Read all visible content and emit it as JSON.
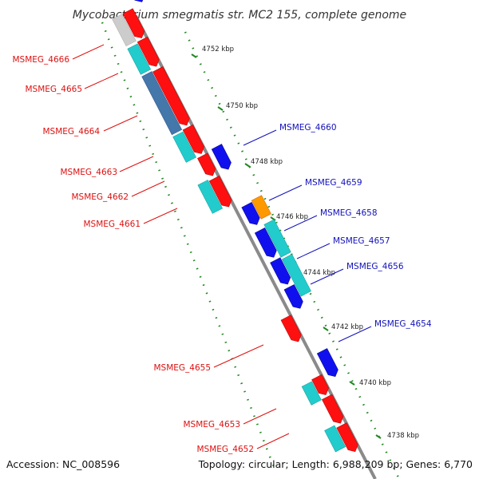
{
  "title": "Mycobacterium smegmatis str. MC2 155, complete genome",
  "accession": "Accession: NC_008596",
  "summary": "Topology: circular; Length: 6,988,209 bp; Genes: 6,770",
  "colors": {
    "cds_forward": "#ff1010",
    "cds_reverse": "#1010ee",
    "cds_other": "#22cccc",
    "orange": "#ff9900",
    "steel": "#4477aa",
    "gray": "#cccccc",
    "backbone": "#8a8a8a",
    "gc_dots": "#228822",
    "label_left": "#dd1111",
    "label_right": "#1111bb"
  },
  "ticks": [
    "4752 kbp",
    "4750 kbp",
    "4748 kbp",
    "4746 kbp",
    "4744 kbp",
    "4742 kbp",
    "4740 kbp",
    "4738 kbp"
  ],
  "left_labels": [
    "MSMEG_4666",
    "MSMEG_4665",
    "MSMEG_4664",
    "MSMEG_4663",
    "MSMEG_4662",
    "MSMEG_4661",
    "MSMEG_4655",
    "MSMEG_4653",
    "MSMEG_4652"
  ],
  "right_labels": [
    "MSMEG_4660",
    "MSMEG_4659",
    "MSMEG_4658",
    "MSMEG_4657",
    "MSMEG_4656",
    "MSMEG_4654"
  ]
}
